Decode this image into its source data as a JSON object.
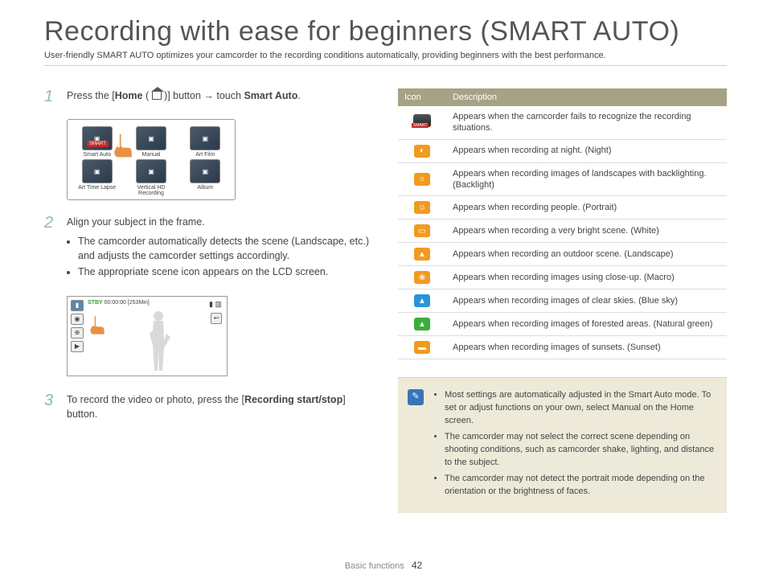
{
  "title": "Recording with ease for beginners (SMART AUTO)",
  "subtitle": "User-friendly SMART AUTO optimizes your camcorder to the recording conditions automatically, providing beginners with the best performance.",
  "steps": {
    "s1": {
      "num": "1",
      "pre": "Press the [",
      "home": "Home",
      "mid": " ( ",
      "close": " )] button → touch ",
      "smart": "Smart Auto",
      "end": "."
    },
    "s2": {
      "num": "2",
      "text": "Align your subject in the frame.",
      "b1": "The camcorder automatically detects the scene (Landscape, etc.) and adjusts the camcorder settings accordingly.",
      "b2": "The appropriate scene icon appears on the LCD screen."
    },
    "s3": {
      "num": "3",
      "pre": "To record the video or photo, press the [",
      "strong": "Recording start/stop",
      "end": "] button."
    }
  },
  "menu": {
    "items": [
      "Smart Auto",
      "Manual",
      "Art Film",
      "Art Time Lapse",
      "Vertical HD Recording",
      "Album"
    ],
    "badge": "SMART"
  },
  "lcd": {
    "stby": "STBY",
    "time": "00:00:00 [253Min]"
  },
  "table": {
    "h1": "Icon",
    "h2": "Description",
    "rows": [
      {
        "cls": "smart",
        "glyph": "",
        "text": "Appears when the camcorder fails to recognize the recording situations."
      },
      {
        "cls": "oi",
        "glyph": "◐",
        "text": "Appears when recording at night. (Night)"
      },
      {
        "cls": "oi",
        "glyph": "☼",
        "text": "Appears when recording images of landscapes with backlighting. (Backlight)"
      },
      {
        "cls": "oi",
        "glyph": "☺",
        "text": "Appears when recording people. (Portrait)"
      },
      {
        "cls": "oi",
        "glyph": "▭",
        "text": "Appears when recording a very bright scene. (White)"
      },
      {
        "cls": "oi",
        "glyph": "▲",
        "text": "Appears when recording an outdoor scene. (Landscape)"
      },
      {
        "cls": "oi",
        "glyph": "❀",
        "text": "Appears when recording images using close-up. (Macro)"
      },
      {
        "cls": "bi",
        "glyph": "▲",
        "text": "Appears when recording images of clear skies. (Blue sky)"
      },
      {
        "cls": "gi",
        "glyph": "▲",
        "text": "Appears when recording images of forested areas. (Natural green)"
      },
      {
        "cls": "oi",
        "glyph": "▬",
        "text": "Appears when recording images of sunsets. (Sunset)"
      }
    ]
  },
  "note": {
    "n1a": "Most settings are automatically adjusted in the Smart Auto mode. To set or adjust functions on your own, select ",
    "n1b": "Manual",
    "n1c": " on the Home screen.",
    "n2": "The camcorder may not select the correct scene depending on shooting conditions, such as camcorder shake, lighting, and distance to the subject.",
    "n3": "The camcorder may not detect the portrait mode depending on the orientation or the brightness of faces."
  },
  "footer": {
    "section": "Basic functions",
    "page": "42"
  },
  "colors": {
    "accent_step": "#8fb7c4",
    "table_header": "#a6a284",
    "orange_icon": "#f29a1f",
    "blue_icon": "#2a95d6",
    "green_icon": "#3aad3a",
    "note_bg": "#eeeada",
    "note_icon": "#3a74b8",
    "smart_red": "#c62828"
  }
}
